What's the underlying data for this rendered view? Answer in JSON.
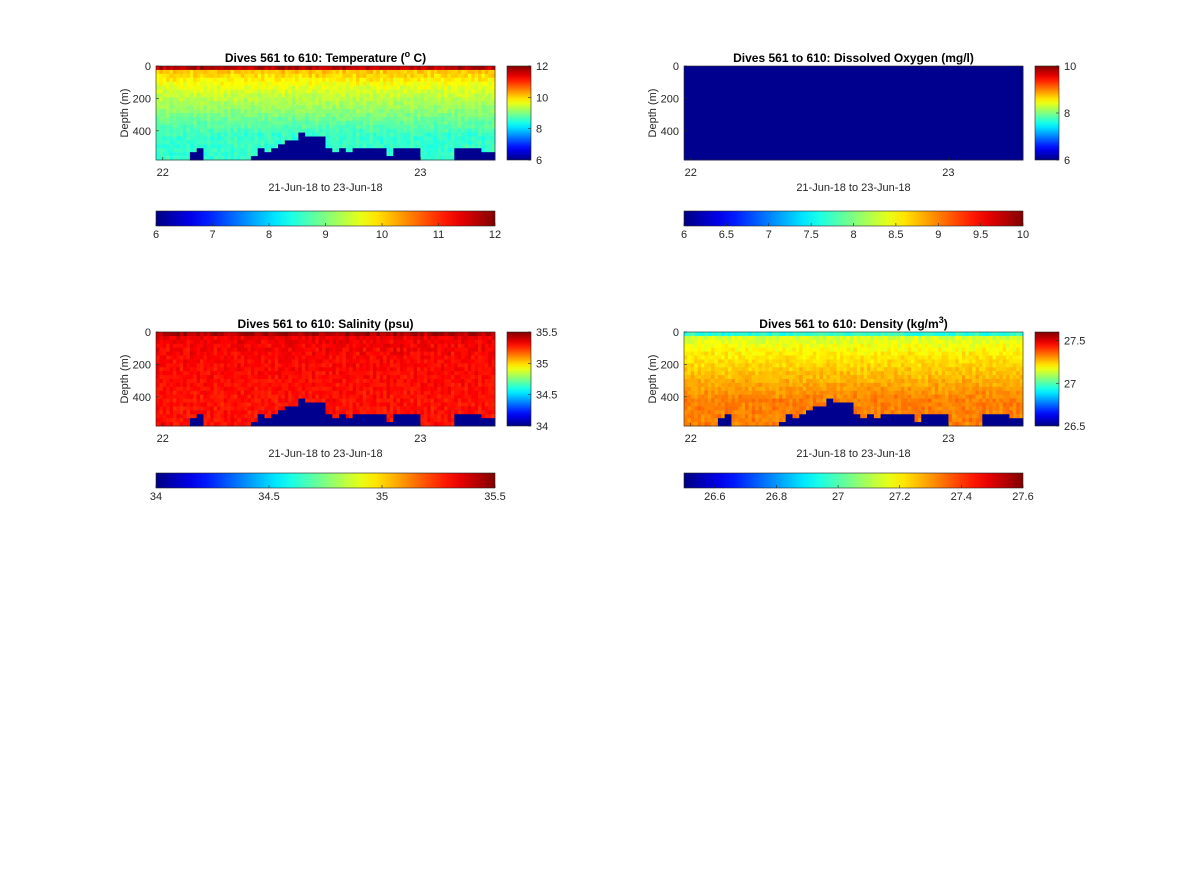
{
  "figure": {
    "background": "#ffffff"
  },
  "chart_data": [
    {
      "type": "heatmap",
      "title": "Dives 561 to 610: Temperature (",
      "title_super": "o",
      "title_tail": " C)",
      "variable": "temperature",
      "ylabel": "Depth (m)",
      "xlabel": "21-Jun-18 to 23-Jun-18",
      "x_ticks": [
        "22",
        "23"
      ],
      "x_tick_values": [
        0.02,
        0.78
      ],
      "y_ticks": [
        "0",
        "200",
        "400"
      ],
      "y_tick_values": [
        0,
        200,
        400
      ],
      "ylim": [
        0,
        580
      ],
      "y_reversed": true,
      "clim": [
        6,
        12
      ],
      "colormap": "jet",
      "colorbar_ticks": [
        "6",
        "8",
        "10",
        "12"
      ],
      "colorbar_tick_values": [
        6,
        8,
        10,
        12
      ],
      "horizontal_colorbar_ticks": [
        "6",
        "7",
        "8",
        "9",
        "10",
        "11",
        "12"
      ],
      "horizontal_colorbar_tick_values": [
        6,
        7,
        8,
        9,
        10,
        11,
        12
      ],
      "surface_value": 11.7,
      "upper_value": 9.6,
      "deep_value": 8.6,
      "mask_color": "#00008f"
    },
    {
      "type": "heatmap",
      "title": "Dives 561 to 610: Dissolved Oxygen (mg/l)",
      "variable": "dissolved_oxygen",
      "ylabel": "Depth (m)",
      "xlabel": "21-Jun-18 to 23-Jun-18",
      "x_ticks": [
        "22",
        "23"
      ],
      "x_tick_values": [
        0.02,
        0.78
      ],
      "y_ticks": [
        "0",
        "200",
        "400"
      ],
      "y_tick_values": [
        0,
        200,
        400
      ],
      "ylim": [
        0,
        580
      ],
      "y_reversed": true,
      "clim": [
        6,
        10
      ],
      "colormap": "jet",
      "colorbar_ticks": [
        "6",
        "8",
        "10"
      ],
      "colorbar_tick_values": [
        6,
        8,
        10
      ],
      "horizontal_colorbar_ticks": [
        "6",
        "6.5",
        "7",
        "7.5",
        "8",
        "8.5",
        "9",
        "9.5",
        "10"
      ],
      "horizontal_colorbar_tick_values": [
        6,
        6.5,
        7,
        7.5,
        8,
        8.5,
        9,
        9.5,
        10
      ],
      "uniform_color": "#00008f"
    },
    {
      "type": "heatmap",
      "title": "Dives 561 to 610: Salinity (psu)",
      "variable": "salinity",
      "ylabel": "Depth (m)",
      "xlabel": "21-Jun-18 to 23-Jun-18",
      "x_ticks": [
        "22",
        "23"
      ],
      "x_tick_values": [
        0.02,
        0.78
      ],
      "y_ticks": [
        "0",
        "200",
        "400"
      ],
      "y_tick_values": [
        0,
        200,
        400
      ],
      "ylim": [
        0,
        580
      ],
      "y_reversed": true,
      "clim": [
        34,
        35.5
      ],
      "colormap": "jet",
      "colorbar_ticks": [
        "34",
        "34.5",
        "35",
        "35.5"
      ],
      "colorbar_tick_values": [
        34,
        34.5,
        35,
        35.5
      ],
      "horizontal_colorbar_ticks": [
        "34",
        "34.5",
        "35",
        "35.5"
      ],
      "horizontal_colorbar_tick_values": [
        34,
        34.5,
        35,
        35.5
      ],
      "surface_value": 35.42,
      "upper_value": 35.3,
      "deep_value": 35.28,
      "mask_color": "#00008f"
    },
    {
      "type": "heatmap",
      "title": "Dives 561 to 610: Density (kg/m",
      "title_super": "3",
      "title_tail": ")",
      "variable": "density",
      "ylabel": "Depth (m)",
      "xlabel": "21-Jun-18 to 23-Jun-18",
      "x_ticks": [
        "22",
        "23"
      ],
      "x_tick_values": [
        0.02,
        0.78
      ],
      "y_ticks": [
        "0",
        "200",
        "400"
      ],
      "y_tick_values": [
        0,
        200,
        400
      ],
      "ylim": [
        0,
        580
      ],
      "y_reversed": true,
      "clim": [
        26.5,
        27.6
      ],
      "colormap": "jet",
      "colorbar_ticks": [
        "26.5",
        "27",
        "27.5"
      ],
      "colorbar_tick_values": [
        26.5,
        27,
        27.5
      ],
      "horizontal_colorbar_ticks": [
        "26.6",
        "26.8",
        "27",
        "27.2",
        "27.4",
        "27.6"
      ],
      "horizontal_colorbar_tick_values": [
        26.6,
        26.8,
        27,
        27.2,
        27.4,
        27.6
      ],
      "surface_value": 26.95,
      "upper_value": 27.2,
      "deep_value": 27.32,
      "mask_color": "#00008f"
    }
  ],
  "bathymetry_depth_m": [
    580,
    580,
    580,
    580,
    580,
    520,
    500,
    580,
    580,
    580,
    580,
    580,
    580,
    560,
    550,
    500,
    510,
    500,
    480,
    440,
    440,
    400,
    420,
    420,
    430,
    500,
    510,
    490,
    510,
    500,
    500,
    500,
    500,
    500,
    550,
    500,
    500,
    500,
    500,
    560,
    570,
    580,
    580,
    580,
    500,
    500,
    500,
    500,
    520,
    520
  ]
}
